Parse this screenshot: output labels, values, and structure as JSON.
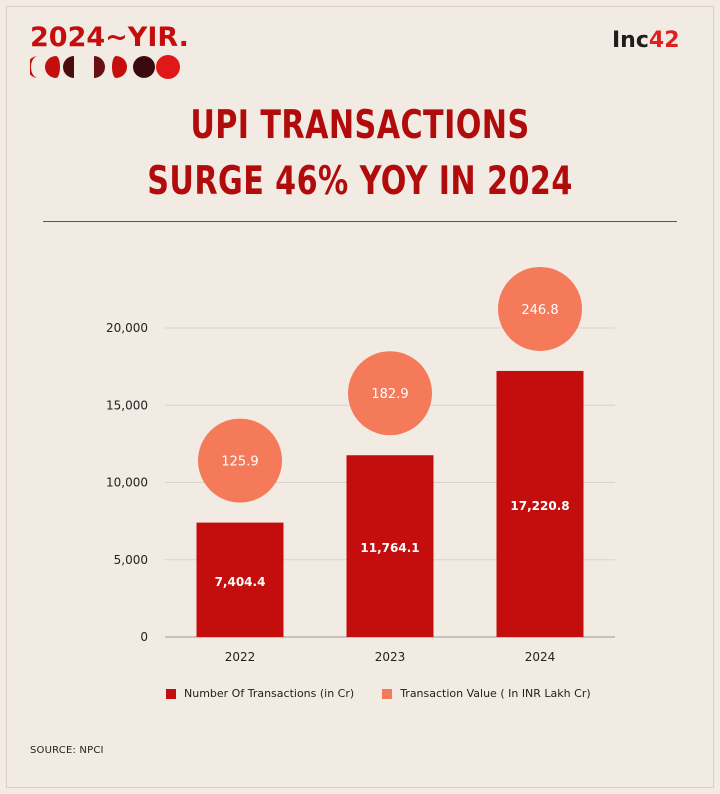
{
  "brand": {
    "yir_label": "2024~YIR",
    "yir_dot": ".",
    "publisher_prefix": "Inc",
    "publisher_number": "42"
  },
  "headline": {
    "line1": "UPI TRANSACTIONS",
    "line2": "SURGE 46%  YOY IN 2024"
  },
  "colors": {
    "bar": "#c40d0d",
    "bubble": "#f47a5a",
    "title": "#b10c0c"
  },
  "chart_data": {
    "type": "bar",
    "title": "UPI TRANSACTIONS SURGE 46%  YOY IN 2024",
    "categories": [
      "2022",
      "2023",
      "2024"
    ],
    "series": [
      {
        "name": "Number Of Transactions (in Cr)",
        "values": [
          7404.4,
          11764.1,
          17220.8
        ],
        "labels": [
          "7,404.4",
          "11,764.1",
          "17,220.8"
        ]
      },
      {
        "name": "Transaction Value ( In INR Lakh Cr)",
        "values": [
          125.9,
          182.9,
          246.8
        ],
        "labels": [
          "125.9",
          "182.9",
          "246.8"
        ]
      }
    ],
    "yticks": [
      0,
      5000,
      10000,
      15000,
      20000
    ],
    "ytick_labels": [
      "0",
      "5,000",
      "10,000",
      "15,000",
      "20,000"
    ],
    "ylim": [
      0,
      20000
    ],
    "grid": true,
    "legend": "bottom",
    "xlabel": "",
    "ylabel": ""
  },
  "source": "SOURCE: NPCI"
}
